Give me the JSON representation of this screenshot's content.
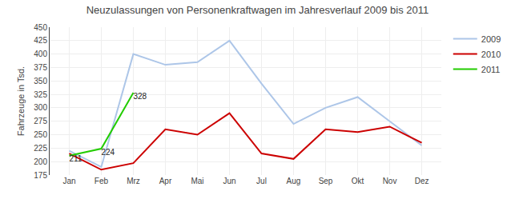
{
  "chart_data": {
    "type": "line",
    "title": "Neuzulassungen von Personenkraftwagen im Jahresverlauf 2009 bis 2011",
    "y_label": "Fahrzeuge in Tsd.",
    "categories": [
      "Jan",
      "Feb",
      "Mrz",
      "Apr",
      "Mai",
      "Jun",
      "Jul",
      "Aug",
      "Sep",
      "Okt",
      "Nov",
      "Dez"
    ],
    "series": [
      {
        "name": "2009",
        "color": "#adc6e8",
        "values": [
          220,
          190,
          400,
          380,
          385,
          425,
          345,
          270,
          300,
          320,
          275,
          230
        ]
      },
      {
        "name": "2010",
        "color": "#cc0000",
        "values": [
          215,
          185,
          197,
          260,
          250,
          290,
          215,
          205,
          260,
          255,
          265,
          235
        ]
      },
      {
        "name": "2011",
        "color": "#22cc00",
        "values": [
          211,
          224,
          328,
          null,
          null,
          null,
          null,
          null,
          null,
          null,
          null,
          null
        ],
        "data_labels": true
      }
    ],
    "ylim": [
      175,
      450
    ],
    "yticks": [
      175,
      200,
      225,
      250,
      275,
      300,
      325,
      350,
      375,
      400,
      425,
      450
    ],
    "grid": true
  }
}
